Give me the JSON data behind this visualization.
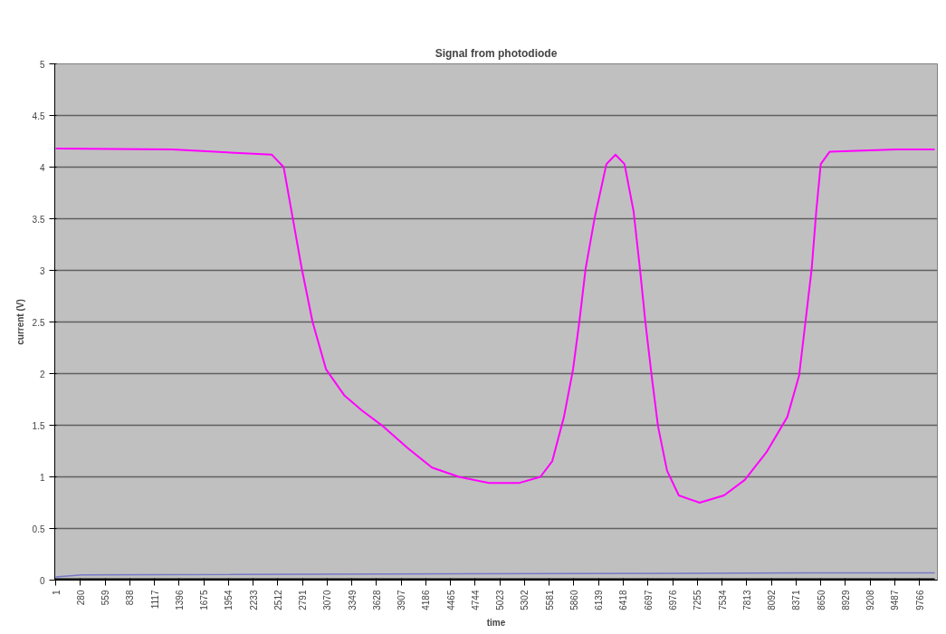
{
  "chart_data": {
    "type": "line",
    "title": "Signal from photodiode",
    "xlabel": "time",
    "ylabel": "current (V)",
    "xlim": [
      -10,
      9970
    ],
    "ylim": [
      0,
      5
    ],
    "xticks": [
      1,
      280,
      559,
      838,
      1117,
      1396,
      1675,
      1954,
      2233,
      2512,
      2791,
      3070,
      3349,
      3628,
      3907,
      4186,
      4465,
      4744,
      5023,
      5302,
      5581,
      5860,
      6139,
      6418,
      6697,
      6976,
      7255,
      7534,
      7813,
      8092,
      8371,
      8650,
      8929,
      9208,
      9487,
      9766
    ],
    "yticks": [
      0,
      0.5,
      1,
      1.5,
      2,
      2.5,
      3,
      3.5,
      4,
      4.5,
      5
    ],
    "grid": "y",
    "marker": "none",
    "line_style": "solid",
    "series": [
      {
        "color": "#ff00ff",
        "x": [
          1,
          1320,
          2445,
          2578,
          2680,
          2782,
          2905,
          3058,
          3263,
          3467,
          3702,
          3978,
          4255,
          4561,
          4899,
          5236,
          5481,
          5614,
          5747,
          5850,
          5921,
          5993,
          6095,
          6228,
          6330,
          6432,
          6535,
          6606,
          6668,
          6739,
          6811,
          6913,
          7046,
          7281,
          7557,
          7792,
          8038,
          8273,
          8406,
          8478,
          8549,
          8600,
          8651,
          8753,
          9500,
          9940
        ],
        "values": [
          4.18,
          4.17,
          4.12,
          4.0,
          3.51,
          3.02,
          2.5,
          2.04,
          1.79,
          1.64,
          1.49,
          1.28,
          1.09,
          1.0,
          0.94,
          0.94,
          1.0,
          1.15,
          1.58,
          2.04,
          2.5,
          3.02,
          3.51,
          4.03,
          4.12,
          4.03,
          3.57,
          3.02,
          2.5,
          1.98,
          1.49,
          1.06,
          0.82,
          0.75,
          0.82,
          0.97,
          1.24,
          1.58,
          1.98,
          2.5,
          3.02,
          3.57,
          4.03,
          4.15,
          4.17,
          4.17
        ]
      },
      {
        "color": "#7878c8",
        "x": [
          1,
          298,
          8478,
          9940
        ],
        "values": [
          0.03,
          0.05,
          0.07,
          0.07
        ]
      },
      {
        "color": "#000000",
        "x": [
          1,
          9940
        ],
        "values": [
          0,
          0
        ]
      }
    ]
  }
}
